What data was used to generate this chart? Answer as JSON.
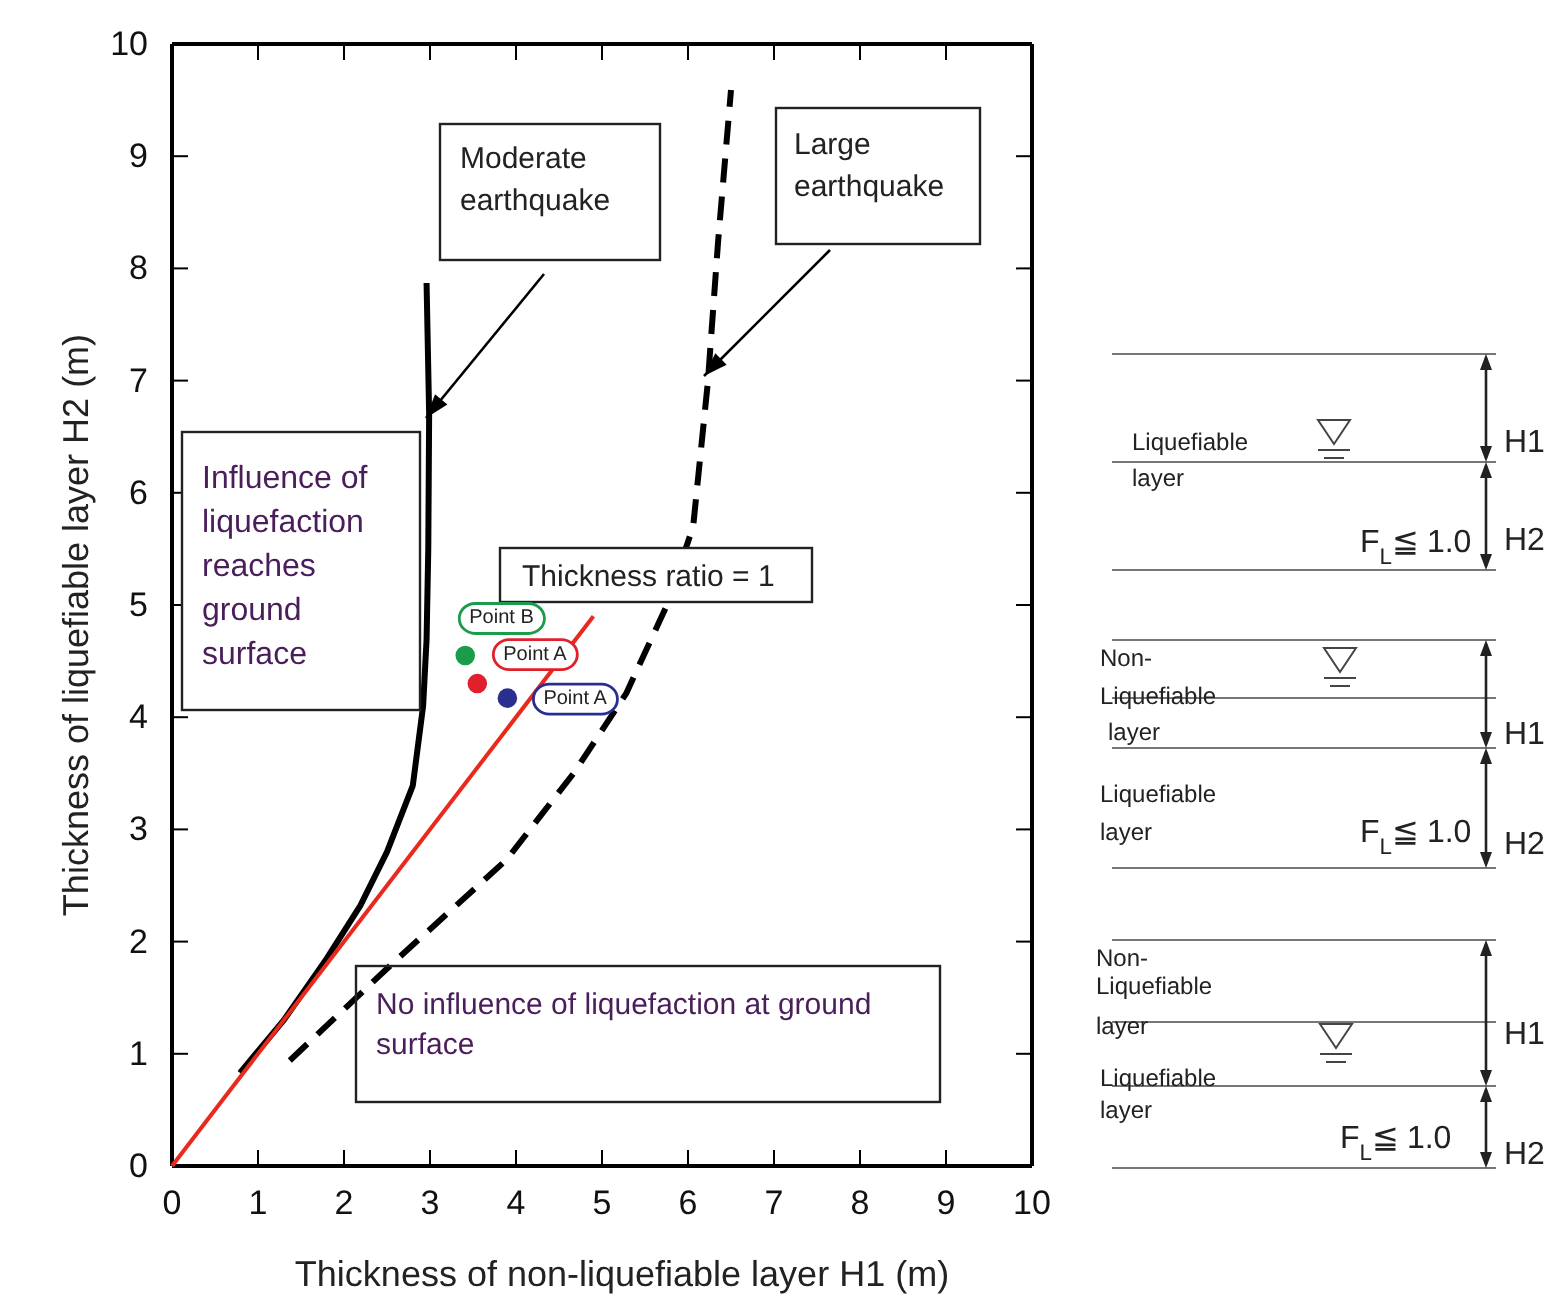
{
  "chart_data": [
    {
      "type": "line",
      "xlabel": "Thickness of non-liquefiable layer H1 (m)",
      "ylabel": "Thickness of liquefiable layer H2 (m)",
      "xlim": [
        0,
        10
      ],
      "ylim": [
        0,
        10
      ],
      "xticks": [
        0,
        1,
        2,
        3,
        4,
        5,
        6,
        7,
        8,
        9,
        10
      ],
      "yticks": [
        0,
        1,
        2,
        3,
        4,
        5,
        6,
        7,
        8,
        9,
        10
      ],
      "grid": false,
      "series": [
        {
          "color": "#000000",
          "line_style": "solid",
          "x": [
            0.79,
            1.3,
            1.8,
            2.19,
            2.5,
            2.8,
            2.92,
            2.96,
            2.98,
            2.99,
            2.96
          ],
          "values": [
            0.83,
            1.3,
            1.85,
            2.32,
            2.8,
            3.39,
            4.1,
            4.69,
            5.5,
            6.7,
            7.87
          ]
        },
        {
          "color": "#000000",
          "line_style": "dashed",
          "x": [
            1.37,
            2.57,
            3.89,
            4.67,
            5.28,
            5.75,
            6.06,
            6.23,
            6.35,
            6.5
          ],
          "values": [
            0.94,
            1.81,
            2.73,
            3.5,
            4.21,
            4.99,
            5.7,
            6.98,
            8.24,
            9.59
          ]
        },
        {
          "color": "#e8291c",
          "line_style": "solid",
          "x": [
            0,
            4.9
          ],
          "values": [
            0,
            4.9
          ]
        },
        {
          "type": "scatter",
          "marker": "circle",
          "x": [
            3.41,
            3.55,
            3.9
          ],
          "values": [
            4.55,
            4.3,
            4.17
          ],
          "colors": [
            "#1a9c4a",
            "#e0202a",
            "#2a2f8f"
          ]
        }
      ],
      "annotations": [
        "Moderate earthquake",
        "Large earthquake",
        "Influence of liquefaction reaches ground surface",
        "Thickness ratio = 1",
        "No influence of liquefaction at ground surface",
        {
          "text": "Point B",
          "x": 3.41,
          "y": 4.55
        },
        {
          "text": "Point A",
          "x": 3.55,
          "y": 4.3
        },
        {
          "text": "Point A",
          "x": 3.9,
          "y": 4.17
        }
      ]
    },
    {
      "type": "other",
      "annotations": [
        "Liquefiable",
        "layer",
        "H1",
        "H2",
        "F$_{L}$≦ 1.0",
        "Non-",
        "Liquefiable",
        "layer",
        "H1",
        "Liquefiable",
        "layer",
        "F$_{L}$≦ 1.0",
        "H2",
        "Non-",
        "Liquefiable",
        "layer",
        "H1",
        "Liquefiable",
        "layer",
        "F$_{L}$≦ 1.0",
        "H2"
      ]
    }
  ]
}
